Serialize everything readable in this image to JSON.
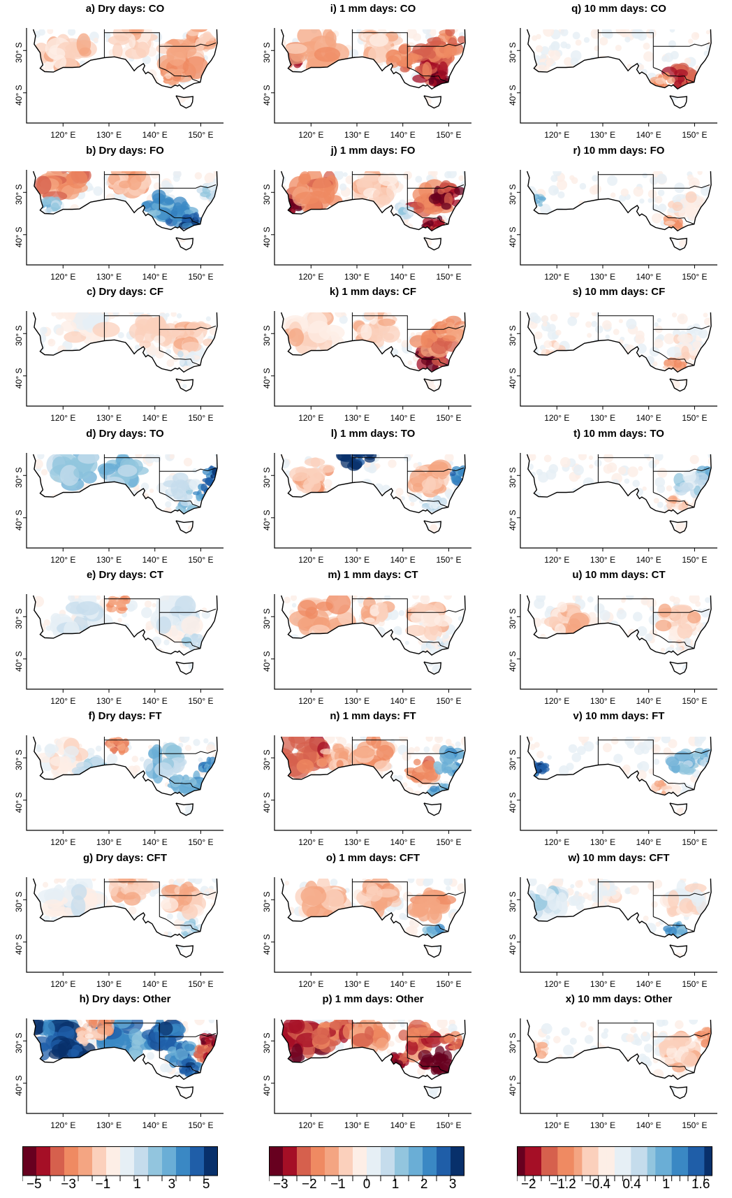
{
  "panels": [
    {
      "id": "a",
      "title": "a) Dry days: CO",
      "col": 0,
      "row": 0,
      "pattern": "dry-co"
    },
    {
      "id": "b",
      "title": "b) Dry days: FO",
      "col": 0,
      "row": 1,
      "pattern": "dry-fo"
    },
    {
      "id": "c",
      "title": "c) Dry days: CF",
      "col": 0,
      "row": 2,
      "pattern": "dry-cf"
    },
    {
      "id": "d",
      "title": "d) Dry days: TO",
      "col": 0,
      "row": 3,
      "pattern": "dry-to"
    },
    {
      "id": "e",
      "title": "e) Dry days: CT",
      "col": 0,
      "row": 4,
      "pattern": "dry-ct"
    },
    {
      "id": "f",
      "title": "f) Dry days: FT",
      "col": 0,
      "row": 5,
      "pattern": "dry-ft"
    },
    {
      "id": "g",
      "title": "g) Dry days: CFT",
      "col": 0,
      "row": 6,
      "pattern": "dry-cft"
    },
    {
      "id": "h",
      "title": "h) Dry days: Other",
      "col": 0,
      "row": 7,
      "pattern": "dry-other"
    },
    {
      "id": "i",
      "title": "i) 1 mm days: CO",
      "col": 1,
      "row": 0,
      "pattern": "mm1-co"
    },
    {
      "id": "j",
      "title": "j) 1 mm days: FO",
      "col": 1,
      "row": 1,
      "pattern": "mm1-fo"
    },
    {
      "id": "k",
      "title": "k) 1 mm days: CF",
      "col": 1,
      "row": 2,
      "pattern": "mm1-cf"
    },
    {
      "id": "l",
      "title": "l) 1 mm days: TO",
      "col": 1,
      "row": 3,
      "pattern": "mm1-to"
    },
    {
      "id": "m",
      "title": "m) 1 mm days: CT",
      "col": 1,
      "row": 4,
      "pattern": "mm1-ct"
    },
    {
      "id": "n",
      "title": "n) 1 mm days: FT",
      "col": 1,
      "row": 5,
      "pattern": "mm1-ft"
    },
    {
      "id": "o",
      "title": "o) 1 mm days: CFT",
      "col": 1,
      "row": 6,
      "pattern": "mm1-cft"
    },
    {
      "id": "p",
      "title": "p) 1 mm days: Other",
      "col": 1,
      "row": 7,
      "pattern": "mm1-other"
    },
    {
      "id": "q",
      "title": "q) 10 mm days: CO",
      "col": 2,
      "row": 0,
      "pattern": "mm10-co"
    },
    {
      "id": "r",
      "title": "r) 10 mm days: FO",
      "col": 2,
      "row": 1,
      "pattern": "mm10-fo"
    },
    {
      "id": "s",
      "title": "s) 10 mm days: CF",
      "col": 2,
      "row": 2,
      "pattern": "mm10-cf"
    },
    {
      "id": "t",
      "title": "t) 10 mm days: TO",
      "col": 2,
      "row": 3,
      "pattern": "mm10-to"
    },
    {
      "id": "u",
      "title": "u) 10 mm days: CT",
      "col": 2,
      "row": 4,
      "pattern": "mm10-ct"
    },
    {
      "id": "v",
      "title": "v) 10 mm days: FT",
      "col": 2,
      "row": 5,
      "pattern": "mm10-ft"
    },
    {
      "id": "w",
      "title": "w) 10 mm days: CFT",
      "col": 2,
      "row": 6,
      "pattern": "mm10-cft"
    },
    {
      "id": "x",
      "title": "x) 10 mm days: Other",
      "col": 2,
      "row": 7,
      "pattern": "mm10-other"
    }
  ],
  "axes": {
    "lon_ticks": [
      "120° E",
      "130° E",
      "140° E",
      "150° E"
    ],
    "lon_values": [
      120,
      130,
      140,
      150
    ],
    "lat_ticks": [
      "30° S",
      "40° S"
    ],
    "lat_values": [
      -30,
      -40
    ],
    "lon_range": [
      112.5,
      154.5
    ],
    "lat_range": [
      -25,
      -44.5
    ]
  },
  "colorbars": [
    {
      "id": "dry",
      "labels": [
        "−5",
        "−3",
        "−1",
        "1",
        "3",
        "5"
      ],
      "n_colors": 14
    },
    {
      "id": "mm1",
      "labels": [
        "−3",
        "−2",
        "−1",
        "0",
        "1",
        "2",
        "3"
      ],
      "n_colors": 14
    },
    {
      "id": "mm10",
      "labels": [
        "−2",
        "−1.2",
        "−0.4",
        "0.4",
        "1",
        "1.6"
      ],
      "n_colors": 24
    }
  ],
  "colors": {
    "palette_rdbu": [
      "#67001f",
      "#a50f26",
      "#d6604d",
      "#ef8a62",
      "#f4a582",
      "#fbd0bc",
      "#fdeee6",
      "#e6eff5",
      "#c5dcec",
      "#92c5de",
      "#6aaed6",
      "#3a88c4",
      "#1f5ea8",
      "#08306b"
    ]
  }
}
